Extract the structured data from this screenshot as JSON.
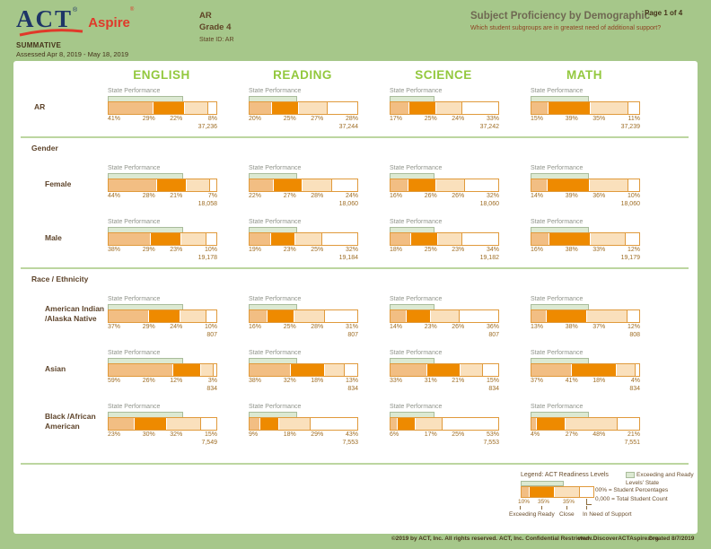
{
  "header": {
    "logo_act": "ACT",
    "logo_aspire": "Aspire",
    "reg": "®",
    "summative": "SUMMATIVE",
    "assessed": "Assessed Apr 8, 2019 - May 18, 2019",
    "org": "AR",
    "grade": "Grade 4",
    "state_id": "State ID: AR",
    "title": "Subject Proficiency by Demographic",
    "subtitle": "Which student subgroups are in greatest need of additional support?",
    "page": "Page 1 of 4"
  },
  "subjects": [
    "ENGLISH",
    "READING",
    "SCIENCE",
    "MATH"
  ],
  "state_performance_label": "State Performance",
  "state_benchmarks": [
    70,
    45,
    42,
    54
  ],
  "groups": [
    {
      "heading": null,
      "rows": [
        {
          "label": "AR",
          "cells": [
            {
              "pcts": [
                41,
                29,
                22,
                8
              ],
              "count": "37,236"
            },
            {
              "pcts": [
                20,
                25,
                27,
                28
              ],
              "count": "37,244"
            },
            {
              "pcts": [
                17,
                25,
                24,
                33
              ],
              "count": "37,242"
            },
            {
              "pcts": [
                15,
                39,
                35,
                11
              ],
              "count": "37,239"
            }
          ]
        }
      ]
    },
    {
      "heading": "Gender",
      "rows": [
        {
          "label": "Female",
          "cells": [
            {
              "pcts": [
                44,
                28,
                21,
                7
              ],
              "count": "18,058"
            },
            {
              "pcts": [
                22,
                27,
                28,
                24
              ],
              "count": "18,060"
            },
            {
              "pcts": [
                16,
                26,
                26,
                32
              ],
              "count": "18,060"
            },
            {
              "pcts": [
                14,
                39,
                36,
                10
              ],
              "count": "18,060"
            }
          ]
        },
        {
          "label": "Male",
          "cells": [
            {
              "pcts": [
                38,
                29,
                23,
                10
              ],
              "count": "19,178"
            },
            {
              "pcts": [
                19,
                23,
                25,
                32
              ],
              "count": "19,184"
            },
            {
              "pcts": [
                18,
                25,
                23,
                34
              ],
              "count": "19,182"
            },
            {
              "pcts": [
                16,
                38,
                33,
                12
              ],
              "count": "19,179"
            }
          ]
        }
      ]
    },
    {
      "heading": "Race / Ethnicity",
      "rows": [
        {
          "label": "American Indian",
          "label2": "/Alaska Native",
          "cells": [
            {
              "pcts": [
                37,
                29,
                24,
                10
              ],
              "count": "807"
            },
            {
              "pcts": [
                16,
                25,
                28,
                31
              ],
              "count": "807"
            },
            {
              "pcts": [
                14,
                23,
                26,
                36
              ],
              "count": "807"
            },
            {
              "pcts": [
                13,
                38,
                37,
                12
              ],
              "count": "808"
            }
          ]
        },
        {
          "label": "Asian",
          "cells": [
            {
              "pcts": [
                59,
                26,
                12,
                3
              ],
              "count": "834"
            },
            {
              "pcts": [
                38,
                32,
                18,
                13
              ],
              "count": "834"
            },
            {
              "pcts": [
                33,
                31,
                21,
                15
              ],
              "count": "834"
            },
            {
              "pcts": [
                37,
                41,
                18,
                4
              ],
              "count": "834"
            }
          ]
        },
        {
          "label": "Black /African",
          "label2": "American",
          "cells": [
            {
              "pcts": [
                23,
                30,
                32,
                15
              ],
              "count": "7,549"
            },
            {
              "pcts": [
                9,
                18,
                29,
                43
              ],
              "count": "7,553"
            },
            {
              "pcts": [
                6,
                17,
                25,
                53
              ],
              "count": "7,553"
            },
            {
              "pcts": [
                4,
                27,
                48,
                21
              ],
              "count": "7,551"
            }
          ]
        }
      ]
    }
  ],
  "legend": {
    "title": "Legend: ACT Readiness Levels",
    "sample_widths": [
      10,
      35,
      35,
      20
    ],
    "sample_pcts": [
      "10%",
      "35%",
      "35%"
    ],
    "overlay_pct": 60,
    "level_labels": [
      "Exceeding",
      "Ready",
      "Close",
      "In Need of Support"
    ],
    "note": [
      "Exceeding and Ready",
      "Levels' State"
    ],
    "keys": [
      "00% = Student Percentages",
      "0,000 = Total Student Count"
    ]
  },
  "footer": {
    "items": [
      "©2019 by ACT, Inc. All rights reserved.",
      "ACT, Inc. Confidential Restricted",
      "www.DiscoverACTAspire.org",
      "Created 8/7/2019"
    ]
  },
  "colors": {
    "page_green": "#a6c78a",
    "header_green": "#93c83e",
    "exceeding": "#f2be83",
    "ready": "#ee8a00",
    "close": "#fae0bc",
    "in_need": "#ffffff",
    "bar_border": "#e09a3c",
    "state_band": "#dce9d2",
    "state_band_border": "#a9bc9b",
    "act_navy": "#1e3567",
    "act_red": "#e0392a"
  }
}
